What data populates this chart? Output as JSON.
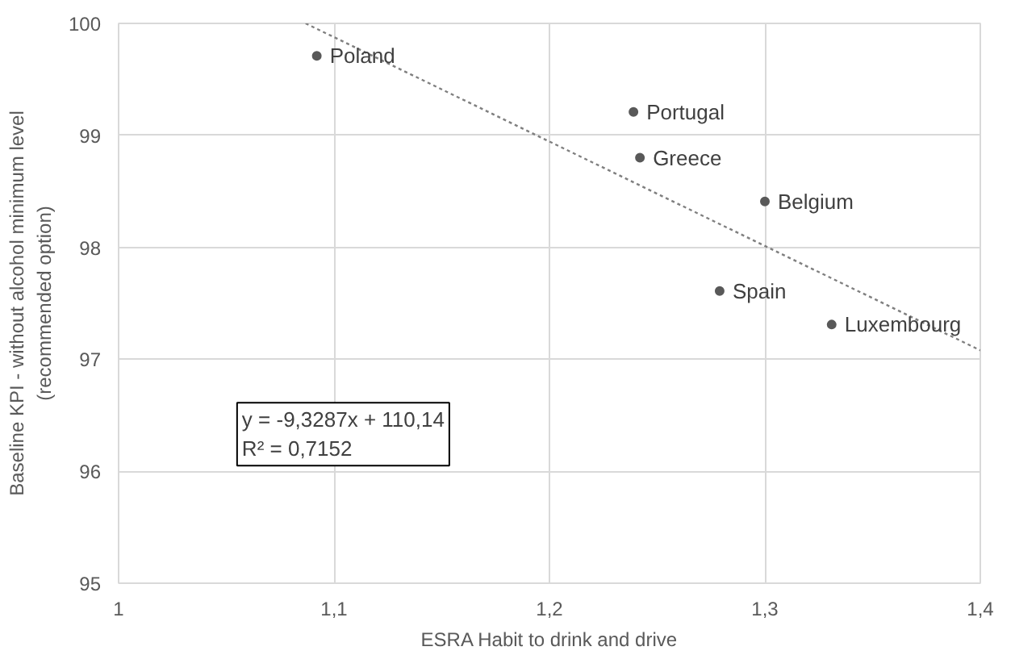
{
  "chart_data": {
    "type": "scatter",
    "xlabel": "ESRA Habit to drink and drive",
    "ylabel": "Baseline KPI - without alcohol minimum level\n(recommended option)",
    "series": [
      {
        "color": "#595959",
        "x": [
          1.092,
          1.239,
          1.242,
          1.3,
          1.279,
          1.331
        ],
        "values": [
          99.71,
          99.21,
          98.8,
          98.41,
          97.61,
          97.31
        ],
        "marker": "circle"
      },
      {
        "type": "line",
        "color": "#7f7f7f",
        "x": [
          1.0868,
          1.4
        ],
        "values": [
          100.0,
          97.08
        ],
        "line_style": "dotted"
      }
    ],
    "annotations": [
      {
        "text": "Poland",
        "x": 1.092,
        "y": 99.71
      },
      {
        "text": "Portugal",
        "x": 1.239,
        "y": 99.21
      },
      {
        "text": "Greece",
        "x": 1.242,
        "y": 98.8
      },
      {
        "text": "Belgium",
        "x": 1.3,
        "y": 98.41
      },
      {
        "text": "Spain",
        "x": 1.279,
        "y": 97.61
      },
      {
        "text": "Luxembourg",
        "x": 1.331,
        "y": 97.31
      },
      "y = -9,3287x + 110,14\nR² = 0,7152"
    ],
    "xlim": [
      1,
      1.4
    ],
    "xticks": [
      1,
      {
        "value": 1.1,
        "label": "1,1"
      },
      {
        "value": 1.2,
        "label": "1,2"
      },
      {
        "value": 1.3,
        "label": "1,3"
      },
      {
        "value": 1.4,
        "label": "1,4"
      }
    ],
    "ylim": [
      95,
      100
    ],
    "yticks": [
      95,
      96,
      97,
      98,
      99,
      100
    ],
    "grid": true
  }
}
